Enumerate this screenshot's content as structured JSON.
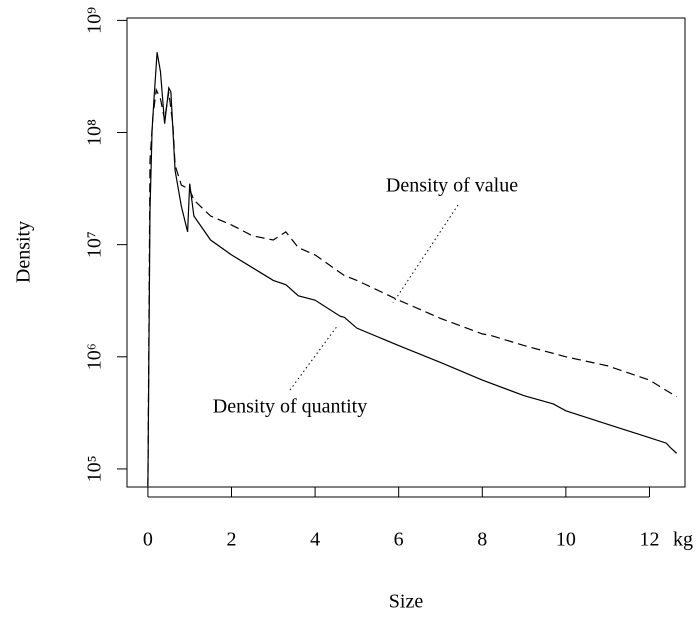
{
  "chart_data": {
    "type": "line",
    "y_label": "Density",
    "x_label": "Size",
    "x_unit": "kg",
    "log_y": true,
    "xlim": [
      -0.5,
      12.85
    ],
    "xticks": [
      0,
      2,
      4,
      6,
      8,
      10,
      12
    ],
    "ylim": [
      69000,
      1050000000
    ],
    "yticks": [
      {
        "value": 100000,
        "label": "10⁵"
      },
      {
        "value": 1000000,
        "label": "10⁶"
      },
      {
        "value": 10000000,
        "label": "10⁷"
      },
      {
        "value": 100000000,
        "label": "10⁸"
      },
      {
        "value": 1000000000,
        "label": "10⁹"
      }
    ],
    "annotations": [
      "Density of value",
      "Density of quantity"
    ],
    "series": [
      {
        "name": "Density of quantity",
        "color": "#000000",
        "dashed": false,
        "x": [
          0,
          0.05,
          0.1,
          0.15,
          0.22,
          0.3,
          0.4,
          0.5,
          0.55,
          0.65,
          0.8,
          0.95,
          1.0,
          1.1,
          1.5,
          2,
          3,
          3.3,
          3.6,
          4,
          4.6,
          4.7,
          5,
          6,
          7,
          8,
          9,
          9.7,
          10,
          11,
          12,
          12.4,
          12.5,
          12.65
        ],
        "values": [
          70000,
          20000000,
          105000000,
          210000000,
          520000000,
          350000000,
          120000000,
          250000000,
          230000000,
          46000000,
          22000000,
          13000000,
          35000000,
          18000000,
          11000000,
          8100000,
          4800000,
          4400000,
          3500000,
          3200000,
          2300000,
          2250000,
          1800000,
          1260000,
          890000,
          620000,
          450000,
          380000,
          330000,
          250000,
          190000,
          170000,
          155000,
          138000
        ]
      },
      {
        "name": "Density of value",
        "color": "#000000",
        "dashed": true,
        "x": [
          0,
          0.05,
          0.12,
          0.2,
          0.3,
          0.4,
          0.5,
          0.6,
          0.65,
          0.8,
          1.0,
          1.1,
          1.5,
          2,
          2.5,
          3,
          3.3,
          3.6,
          4,
          4.7,
          5,
          6,
          7,
          8,
          8.2,
          9,
          10,
          11,
          12,
          12.65
        ],
        "values": [
          70000,
          56000000,
          140000000,
          240000000,
          200000000,
          130000000,
          230000000,
          115000000,
          51000000,
          34000000,
          31000000,
          25000000,
          18000000,
          15000000,
          12000000,
          11000000,
          13000000,
          9400000,
          8100000,
          5300000,
          4800000,
          3200000,
          2200000,
          1600000,
          1550000,
          1260000,
          1000000,
          830000,
          620000,
          440000
        ]
      }
    ]
  }
}
